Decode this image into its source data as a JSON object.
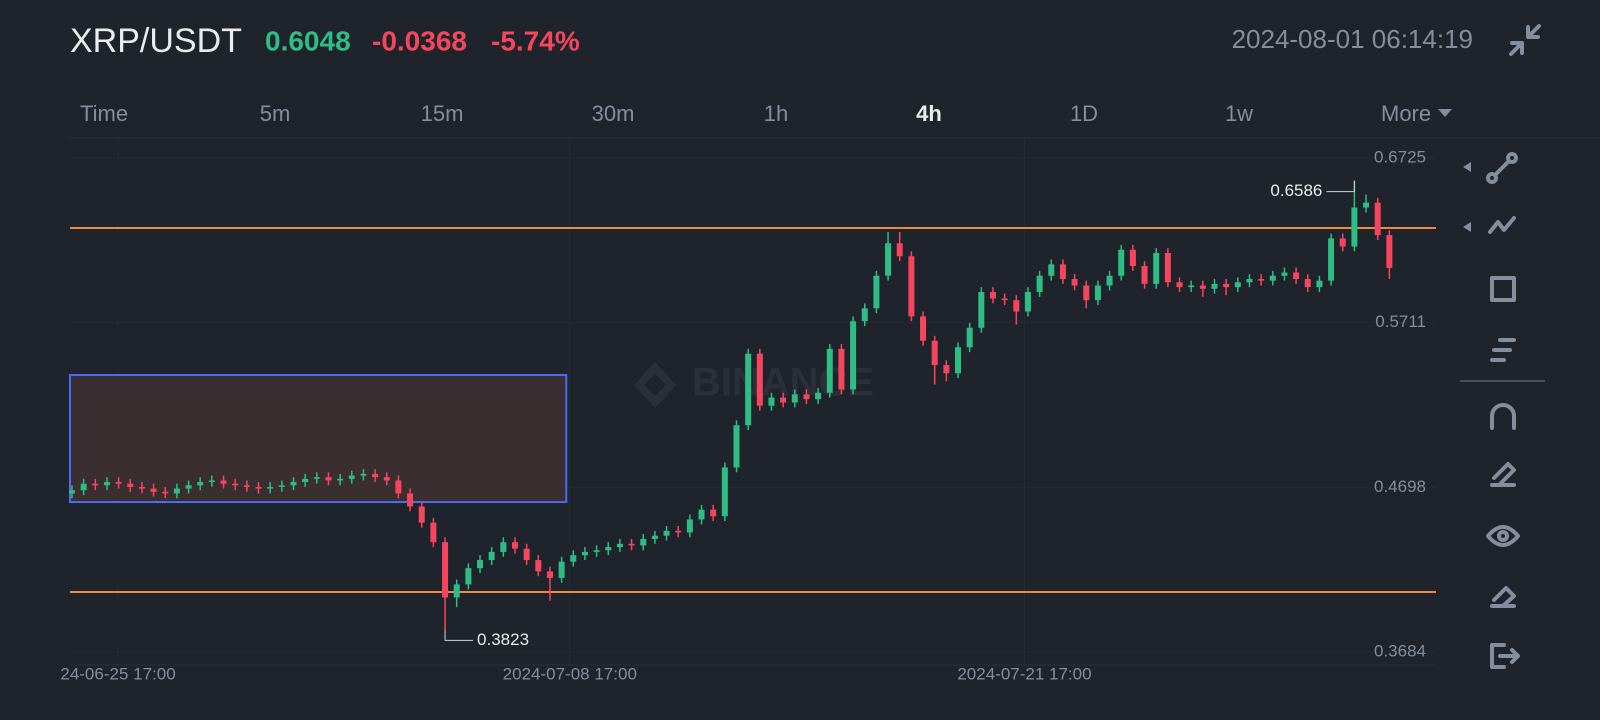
{
  "header": {
    "pair": "XRP/USDT",
    "price": "0.6048",
    "change": "-0.0368",
    "change_percent": "-5.74%",
    "time": "2024-08-01 06:14:19"
  },
  "tabs": [
    "Time",
    "5m",
    "15m",
    "30m",
    "1h",
    "4h",
    "1D",
    "1w",
    "More"
  ],
  "active_tab": 5,
  "chart_data": {
    "type": "candlestick",
    "watermark": "BINANCE",
    "up_color": "#2ebd85",
    "down_color": "#f6465d",
    "xlim": [
      -0.17,
      117
    ],
    "xticks": [
      {
        "value": 3.95,
        "label": "24-06-25 17:00"
      },
      {
        "value": 42.7,
        "label": "2024-07-08 17:00"
      },
      {
        "value": 81.7,
        "label": "2024-07-21 17:00"
      }
    ],
    "ylim": [
      0.3604,
      0.6848
    ],
    "yticks": [
      0.3684,
      0.4698,
      0.5711,
      0.6725
    ],
    "grid": true,
    "hlines": [
      {
        "value": 0.6294,
        "color": "#f0883e"
      },
      {
        "value": 0.4053,
        "color": "#f0883e"
      }
    ],
    "rectangle": {
      "x": [
        -0.17,
        42.4
      ],
      "y": [
        0.4607,
        0.5389
      ],
      "color": "#4a6cf7",
      "fill": "#3a2e30"
    },
    "max_label_index": 110,
    "min_label_index": 32,
    "open": [
      0.466,
      0.468,
      0.472,
      0.471,
      0.473,
      0.472,
      0.47,
      0.469,
      0.467,
      0.466,
      0.469,
      0.471,
      0.473,
      0.474,
      0.472,
      0.471,
      0.47,
      0.469,
      0.47,
      0.471,
      0.473,
      0.475,
      0.476,
      0.474,
      0.475,
      0.477,
      0.478,
      0.476,
      0.474,
      0.466,
      0.458,
      0.448,
      0.436,
      0.402,
      0.41,
      0.42,
      0.425,
      0.43,
      0.436,
      0.432,
      0.425,
      0.418,
      0.414,
      0.424,
      0.428,
      0.43,
      0.431,
      0.433,
      0.435,
      0.434,
      0.438,
      0.44,
      0.443,
      0.442,
      0.45,
      0.456,
      0.452,
      0.482,
      0.508,
      0.552,
      0.52,
      0.525,
      0.522,
      0.527,
      0.524,
      0.528,
      0.555,
      0.53,
      0.572,
      0.58,
      0.6,
      0.62,
      0.612,
      0.575,
      0.56,
      0.545,
      0.54,
      0.556,
      0.568,
      0.59,
      0.586,
      0.585,
      0.578,
      0.59,
      0.6,
      0.607,
      0.598,
      0.594,
      0.585,
      0.594,
      0.6,
      0.616,
      0.606,
      0.595,
      0.614,
      0.596,
      0.593,
      0.594,
      0.592,
      0.595,
      0.593,
      0.596,
      0.598,
      0.597,
      0.6,
      0.602,
      0.598,
      0.593,
      0.597,
      0.623,
      0.618,
      0.642,
      0.645,
      0.625
    ],
    "high": [
      0.471,
      0.475,
      0.475,
      0.476,
      0.476,
      0.475,
      0.473,
      0.472,
      0.47,
      0.472,
      0.474,
      0.476,
      0.477,
      0.477,
      0.475,
      0.474,
      0.473,
      0.473,
      0.474,
      0.476,
      0.478,
      0.479,
      0.479,
      0.478,
      0.48,
      0.481,
      0.481,
      0.479,
      0.477,
      0.469,
      0.461,
      0.451,
      0.439,
      0.413,
      0.423,
      0.428,
      0.433,
      0.439,
      0.439,
      0.435,
      0.428,
      0.421,
      0.427,
      0.431,
      0.433,
      0.434,
      0.436,
      0.438,
      0.438,
      0.441,
      0.443,
      0.446,
      0.446,
      0.453,
      0.459,
      0.459,
      0.485,
      0.511,
      0.555,
      0.555,
      0.528,
      0.528,
      0.53,
      0.53,
      0.531,
      0.558,
      0.558,
      0.575,
      0.583,
      0.603,
      0.627,
      0.627,
      0.615,
      0.578,
      0.563,
      0.548,
      0.559,
      0.571,
      0.593,
      0.593,
      0.589,
      0.588,
      0.593,
      0.603,
      0.61,
      0.61,
      0.601,
      0.597,
      0.597,
      0.603,
      0.619,
      0.619,
      0.609,
      0.617,
      0.617,
      0.599,
      0.597,
      0.597,
      0.598,
      0.598,
      0.599,
      0.601,
      0.601,
      0.603,
      0.605,
      0.605,
      0.601,
      0.6,
      0.626,
      0.626,
      0.6586,
      0.65,
      0.648,
      0.628
    ],
    "low": [
      0.463,
      0.465,
      0.468,
      0.468,
      0.469,
      0.467,
      0.466,
      0.464,
      0.463,
      0.463,
      0.466,
      0.468,
      0.47,
      0.469,
      0.468,
      0.467,
      0.466,
      0.466,
      0.467,
      0.468,
      0.47,
      0.472,
      0.471,
      0.471,
      0.472,
      0.474,
      0.473,
      0.471,
      0.463,
      0.455,
      0.445,
      0.433,
      0.3823,
      0.396,
      0.407,
      0.417,
      0.422,
      0.427,
      0.429,
      0.422,
      0.415,
      0.4,
      0.411,
      0.421,
      0.425,
      0.427,
      0.428,
      0.43,
      0.431,
      0.431,
      0.435,
      0.437,
      0.439,
      0.439,
      0.447,
      0.449,
      0.449,
      0.479,
      0.505,
      0.517,
      0.517,
      0.519,
      0.519,
      0.521,
      0.521,
      0.525,
      0.527,
      0.527,
      0.569,
      0.577,
      0.597,
      0.609,
      0.572,
      0.557,
      0.533,
      0.535,
      0.537,
      0.553,
      0.565,
      0.583,
      0.582,
      0.57,
      0.575,
      0.587,
      0.597,
      0.595,
      0.591,
      0.58,
      0.582,
      0.591,
      0.597,
      0.603,
      0.592,
      0.592,
      0.593,
      0.59,
      0.59,
      0.587,
      0.589,
      0.588,
      0.59,
      0.593,
      0.594,
      0.594,
      0.597,
      0.595,
      0.59,
      0.59,
      0.594,
      0.615,
      0.615,
      0.639,
      0.622,
      0.598
    ],
    "close": [
      0.468,
      0.472,
      0.471,
      0.473,
      0.472,
      0.47,
      0.469,
      0.467,
      0.466,
      0.469,
      0.471,
      0.473,
      0.474,
      0.472,
      0.471,
      0.47,
      0.469,
      0.47,
      0.471,
      0.473,
      0.475,
      0.476,
      0.474,
      0.475,
      0.477,
      0.478,
      0.476,
      0.474,
      0.466,
      0.458,
      0.448,
      0.436,
      0.402,
      0.41,
      0.42,
      0.425,
      0.43,
      0.436,
      0.432,
      0.425,
      0.418,
      0.414,
      0.424,
      0.428,
      0.43,
      0.431,
      0.433,
      0.435,
      0.434,
      0.438,
      0.44,
      0.443,
      0.442,
      0.45,
      0.456,
      0.452,
      0.482,
      0.508,
      0.552,
      0.52,
      0.525,
      0.522,
      0.527,
      0.524,
      0.528,
      0.555,
      0.53,
      0.572,
      0.58,
      0.6,
      0.62,
      0.612,
      0.575,
      0.56,
      0.545,
      0.54,
      0.556,
      0.568,
      0.59,
      0.586,
      0.585,
      0.578,
      0.59,
      0.6,
      0.607,
      0.598,
      0.594,
      0.585,
      0.594,
      0.6,
      0.616,
      0.606,
      0.595,
      0.614,
      0.596,
      0.593,
      0.594,
      0.592,
      0.595,
      0.593,
      0.596,
      0.598,
      0.597,
      0.6,
      0.602,
      0.598,
      0.593,
      0.597,
      0.623,
      0.618,
      0.642,
      0.645,
      0.625,
      0.6048
    ]
  }
}
